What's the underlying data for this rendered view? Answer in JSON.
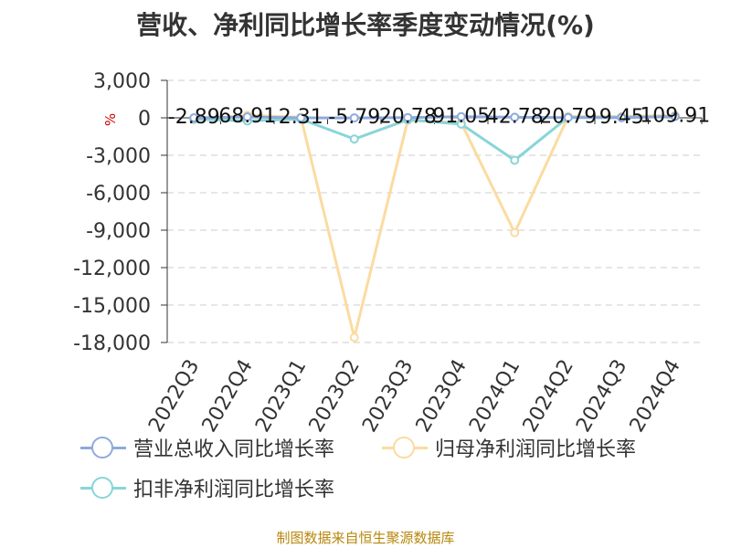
{
  "chart_data": {
    "type": "line",
    "title": "营收、净利同比增长率季度变动情况(%)",
    "unit": "%",
    "x": [
      "2022Q3",
      "2022Q4",
      "2023Q1",
      "2023Q2",
      "2023Q3",
      "2023Q4",
      "2024Q1",
      "2024Q2",
      "2024Q3",
      "2024Q4"
    ],
    "yticks": [
      "3,000",
      "0",
      "-3,000",
      "-6,000",
      "-9,000",
      "-12,000",
      "-15,000",
      "-18,000"
    ],
    "ytick_values": [
      3000,
      0,
      -3000,
      -6000,
      -9000,
      -12000,
      -15000,
      -18000
    ],
    "ylim": [
      -18000,
      3000
    ],
    "grid": true,
    "legend_position": "bottom",
    "series": [
      {
        "name": "营业总收入同比增长率",
        "color": "#8eaadc",
        "values": [
          -2.89,
          68.91,
          2.31,
          -5.79,
          20.78,
          91.05,
          42.78,
          20.79,
          9.45,
          109.91
        ],
        "labels": [
          "-2.89",
          "68.91",
          "2.31",
          "-5.79",
          "20.78",
          "91.05",
          "42.78",
          "20.79",
          "9.45",
          "109.91"
        ]
      },
      {
        "name": "归母净利润同比增长率",
        "color": "#fbdba0",
        "values": [
          -150,
          200,
          50,
          -17600,
          -200,
          -400,
          -9200,
          100,
          100,
          200
        ]
      },
      {
        "name": "扣非净利润同比增长率",
        "color": "#88d5d8",
        "values": [
          -100,
          -250,
          -100,
          -1700,
          -150,
          -500,
          -3400,
          50,
          50,
          100
        ]
      }
    ],
    "source": "制图数据来自恒生聚源数据库"
  }
}
